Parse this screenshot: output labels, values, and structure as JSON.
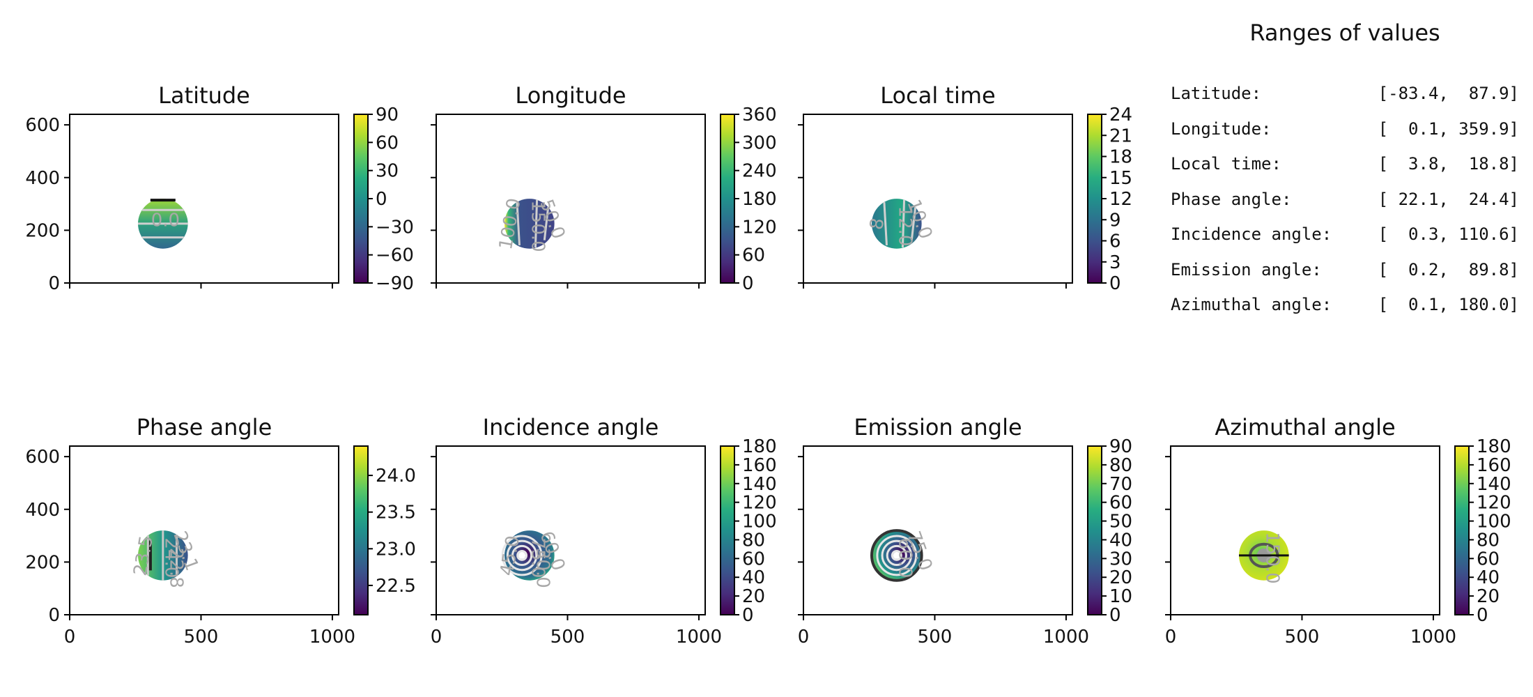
{
  "ranges": {
    "title": "Ranges of values",
    "rows": [
      {
        "label": "Latitude:",
        "value": "[-83.4,  87.9]"
      },
      {
        "label": "Longitude:",
        "value": "[  0.1, 359.9]"
      },
      {
        "label": "Local time:",
        "value": "[  3.8,  18.8]"
      },
      {
        "label": "Phase angle:",
        "value": "[ 22.1,  24.4]"
      },
      {
        "label": "Incidence angle:",
        "value": "[  0.3, 110.6]"
      },
      {
        "label": "Emission angle:",
        "value": "[  0.2,  89.8]"
      },
      {
        "label": "Azimuthal angle:",
        "value": "[  0.1, 180.0]"
      }
    ]
  },
  "chart_data": [
    {
      "type": "heatmap",
      "title": "Latitude",
      "x_ticks": [
        "0",
        "500",
        "1000"
      ],
      "y_ticks": [
        "0",
        "200",
        "400",
        "600"
      ],
      "xlim": [
        0,
        1024
      ],
      "ylim": [
        0,
        640
      ],
      "colormap": "viridis",
      "disc": {
        "cx": 355,
        "cy": 225,
        "r": 95
      },
      "colorbar": {
        "min": -90,
        "max": 90,
        "ticks": [
          "90",
          "60",
          "30",
          "0",
          "−30",
          "−60",
          "−90"
        ]
      },
      "contour_labels": [
        "0.0"
      ]
    },
    {
      "type": "heatmap",
      "title": "Longitude",
      "x_ticks": [
        "0",
        "500",
        "1000"
      ],
      "y_ticks": [
        "0",
        "200",
        "400",
        "600"
      ],
      "xlim": [
        0,
        1024
      ],
      "ylim": [
        0,
        640
      ],
      "colormap": "viridis",
      "disc": {
        "cx": 355,
        "cy": 225,
        "r": 95
      },
      "colorbar": {
        "min": 0,
        "max": 360,
        "ticks": [
          "360",
          "300",
          "240",
          "180",
          "120",
          "60",
          "0"
        ]
      },
      "contour_labels": [
        "150.0",
        "50.0",
        "100.0"
      ]
    },
    {
      "type": "heatmap",
      "title": "Local time",
      "x_ticks": [
        "0",
        "500",
        "1000"
      ],
      "y_ticks": [
        "0",
        "200",
        "400",
        "600"
      ],
      "xlim": [
        0,
        1024
      ],
      "ylim": [
        0,
        640
      ],
      "colormap": "viridis",
      "disc": {
        "cx": 355,
        "cy": 225,
        "r": 95
      },
      "colorbar": {
        "min": 0,
        "max": 24,
        "ticks": [
          "24",
          "21",
          "18",
          "15",
          "12",
          "9",
          "6",
          "3",
          "0"
        ]
      },
      "contour_labels": [
        "12.0",
        "10.0",
        "8"
      ]
    },
    {
      "type": "heatmap",
      "title": "Phase angle",
      "x_ticks": [
        "0",
        "500",
        "1000"
      ],
      "y_ticks": [
        "0",
        "200",
        "400",
        "600"
      ],
      "xlim": [
        0,
        1024
      ],
      "ylim": [
        0,
        640
      ],
      "colormap": "viridis",
      "disc": {
        "cx": 355,
        "cy": 225,
        "r": 95
      },
      "colorbar": {
        "min": 22.1,
        "max": 24.4,
        "ticks": [
          "24.0",
          "23.5",
          "23.0",
          "22.5"
        ]
      },
      "contour_labels": [
        "24.0",
        "23.1",
        "23.5",
        "22.8"
      ]
    },
    {
      "type": "heatmap",
      "title": "Incidence angle",
      "x_ticks": [
        "0",
        "500",
        "1000"
      ],
      "y_ticks": [
        "0",
        "200",
        "400",
        "600"
      ],
      "xlim": [
        0,
        1024
      ],
      "ylim": [
        0,
        640
      ],
      "colormap": "viridis",
      "disc": {
        "cx": 355,
        "cy": 225,
        "r": 95
      },
      "colorbar": {
        "min": 0,
        "max": 180,
        "ticks": [
          "180",
          "160",
          "140",
          "120",
          "100",
          "80",
          "60",
          "40",
          "20",
          "0"
        ]
      },
      "contour_labels": [
        "75.0",
        "60.0",
        "45.0",
        "30.0"
      ]
    },
    {
      "type": "heatmap",
      "title": "Emission angle",
      "x_ticks": [
        "0",
        "500",
        "1000"
      ],
      "y_ticks": [
        "0",
        "200",
        "400",
        "600"
      ],
      "xlim": [
        0,
        1024
      ],
      "ylim": [
        0,
        640
      ],
      "colormap": "viridis",
      "disc": {
        "cx": 355,
        "cy": 225,
        "r": 95
      },
      "colorbar": {
        "min": 0,
        "max": 90,
        "ticks": [
          "90",
          "80",
          "70",
          "60",
          "50",
          "40",
          "30",
          "20",
          "10",
          "0"
        ]
      },
      "contour_labels": [
        "60.0",
        "75.0"
      ]
    },
    {
      "type": "heatmap",
      "title": "Azimuthal angle",
      "x_ticks": [
        "0",
        "500",
        "1000"
      ],
      "y_ticks": [
        "0",
        "200",
        "400",
        "600"
      ],
      "xlim": [
        0,
        1024
      ],
      "ylim": [
        0,
        640
      ],
      "colormap": "viridis",
      "disc": {
        "cx": 355,
        "cy": 225,
        "r": 95
      },
      "colorbar": {
        "min": 0,
        "max": 180,
        "ticks": [
          "180",
          "160",
          "140",
          "120",
          "100",
          "80",
          "60",
          "40",
          "20",
          "0"
        ]
      },
      "contour_labels": [
        "150.0"
      ]
    }
  ]
}
